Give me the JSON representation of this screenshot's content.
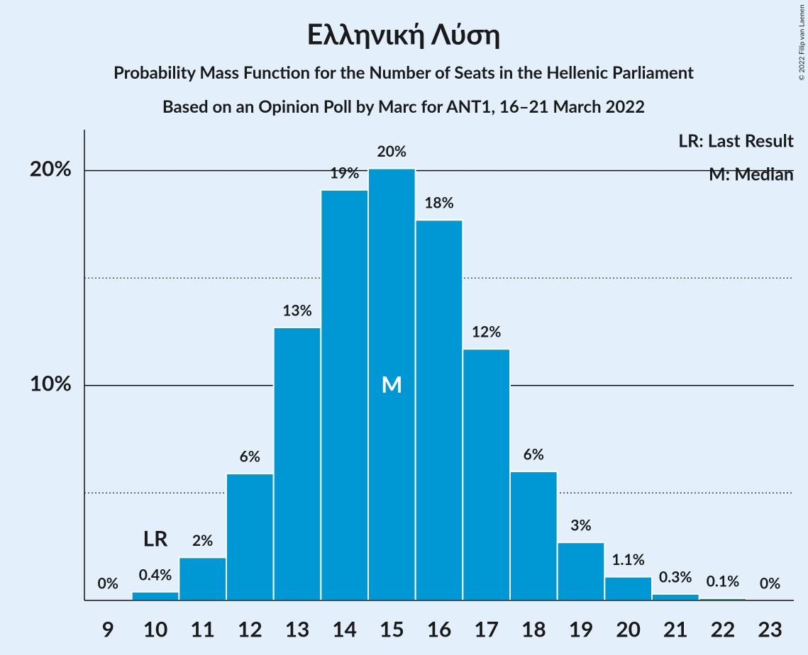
{
  "chart_data": {
    "type": "bar",
    "title": "Ελληνική Λύση",
    "subtitle": "Probability Mass Function for the Number of Seats in the Hellenic Parliament",
    "subtitle2": "Based on an Opinion Poll by Marc for ANT1, 16–21 March 2022",
    "copyright": "© 2022 Filip van Laenen",
    "categories": [
      "9",
      "10",
      "11",
      "12",
      "13",
      "14",
      "15",
      "16",
      "17",
      "18",
      "19",
      "20",
      "21",
      "22",
      "23"
    ],
    "values": [
      0,
      0.4,
      2.0,
      5.9,
      12.7,
      19.1,
      20.1,
      17.7,
      11.7,
      6.0,
      2.7,
      1.1,
      0.3,
      0.1,
      0
    ],
    "value_labels": [
      "0%",
      "0.4%",
      "2%",
      "6%",
      "13%",
      "19%",
      "20%",
      "18%",
      "12%",
      "6%",
      "3%",
      "1.1%",
      "0.3%",
      "0.1%",
      "0%"
    ],
    "color": "#0098d4",
    "ylim": [
      0,
      21.9
    ],
    "yticks": [
      {
        "value": 10,
        "label": "10%"
      },
      {
        "value": 20,
        "label": "20%"
      }
    ],
    "minor_grid": [
      5,
      15
    ],
    "last_result": {
      "category": "10",
      "label": "LR"
    },
    "median": {
      "category": "15",
      "label": "M"
    },
    "legend": [
      "LR: Last Result",
      "M: Median"
    ],
    "legend_position": "upper right"
  }
}
